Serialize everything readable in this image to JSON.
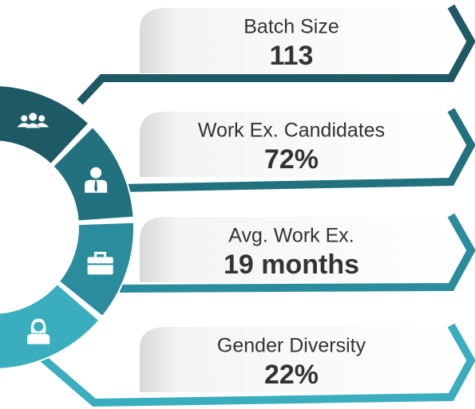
{
  "items": [
    {
      "label": "Batch Size",
      "value": "113"
    },
    {
      "label": "Work Ex. Candidates",
      "value": "72%"
    },
    {
      "label": "Avg. Work Ex.",
      "value": "19 months"
    },
    {
      "label": "Gender Diversity",
      "value": "22%"
    }
  ]
}
